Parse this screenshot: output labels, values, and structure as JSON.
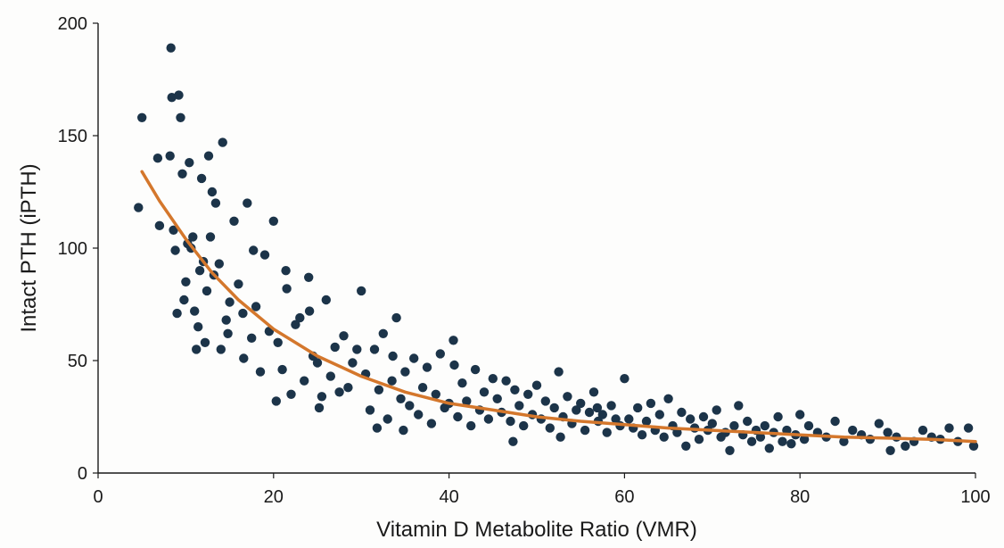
{
  "chart_data": {
    "type": "scatter",
    "title": "",
    "xlabel": "Vitamin D Metabolite Ratio (VMR)",
    "ylabel": "Intact PTH (iPTH)",
    "xlim": [
      0,
      100
    ],
    "ylim": [
      0,
      200
    ],
    "x_ticks": [
      0,
      20,
      40,
      60,
      80,
      100
    ],
    "y_ticks": [
      0,
      50,
      100,
      150,
      200
    ],
    "x_tick_labels": [
      "0",
      "20",
      "40",
      "60",
      "80",
      "100"
    ],
    "y_tick_labels": [
      "0",
      "50",
      "100",
      "150",
      "200"
    ],
    "grid": false,
    "legend": "none",
    "colors": {
      "points": "#1c3449",
      "fit_line": "#d4772c",
      "axis": "#1a1a1a"
    },
    "series": [
      {
        "kind": "points",
        "x": [
          4.6,
          5.0,
          6.8,
          7.0,
          8.2,
          8.3,
          8.4,
          8.6,
          8.8,
          9.0,
          9.2,
          9.4,
          9.6,
          10.0,
          10.4,
          10.8,
          11.2,
          11.0,
          11.4,
          11.8,
          12.0,
          12.2,
          12.6,
          13.0,
          13.4,
          13.8,
          14.2,
          14.0,
          10.2,
          11.6,
          12.4,
          13.2,
          14.6,
          15.0,
          9.8,
          10.6,
          12.8,
          14.8
        ],
        "y": [
          118,
          158,
          140,
          110,
          141,
          189,
          167,
          108,
          99,
          71,
          168,
          158,
          133,
          85,
          138,
          105,
          55,
          72,
          65,
          131,
          94,
          58,
          141,
          125,
          120,
          93,
          147,
          55,
          102,
          90,
          81,
          88,
          68,
          76,
          77,
          100,
          105,
          62
        ]
      },
      {
        "kind": "points",
        "x": [
          15.5,
          16.0,
          16.5,
          17.0,
          17.5,
          18.0,
          18.5,
          19.0,
          19.5,
          20.0,
          20.5,
          21.0,
          21.5,
          22.0,
          22.5,
          23.0,
          23.5,
          24.0,
          24.5,
          25.0,
          25.5,
          26.0,
          26.5,
          27.0,
          27.5,
          28.0,
          28.5,
          29.0,
          29.5,
          30.0,
          20.3,
          21.4,
          24.1,
          25.2,
          16.6,
          17.7
        ],
        "y": [
          112,
          84,
          71,
          120,
          60,
          74,
          45,
          97,
          63,
          112,
          58,
          46,
          82,
          35,
          66,
          69,
          41,
          87,
          52,
          49,
          34,
          77,
          43,
          56,
          36,
          61,
          38,
          49,
          55,
          81,
          32,
          90,
          72,
          29,
          51,
          99
        ]
      },
      {
        "kind": "points",
        "x": [
          30.5,
          31.0,
          31.5,
          32.0,
          32.5,
          33.0,
          33.5,
          34.0,
          34.5,
          35.0,
          35.5,
          36.0,
          36.5,
          37.0,
          37.5,
          38.0,
          38.5,
          39.0,
          39.5,
          40.0,
          40.5,
          41.0,
          41.5,
          42.0,
          42.5,
          43.0,
          43.5,
          44.0,
          44.5,
          45.0,
          31.8,
          33.6,
          34.8,
          40.6
        ],
        "y": [
          44,
          28,
          55,
          37,
          62,
          24,
          41,
          69,
          33,
          45,
          30,
          51,
          26,
          38,
          47,
          22,
          35,
          53,
          29,
          31,
          59,
          25,
          40,
          32,
          21,
          46,
          28,
          36,
          24,
          42,
          20,
          52,
          19,
          48
        ]
      },
      {
        "kind": "points",
        "x": [
          45.5,
          46.0,
          46.5,
          47.0,
          47.5,
          48.0,
          48.5,
          49.0,
          49.5,
          50.0,
          50.5,
          51.0,
          51.5,
          52.0,
          52.5,
          53.0,
          53.5,
          54.0,
          54.5,
          55.0,
          55.5,
          56.0,
          56.5,
          57.0,
          57.5,
          58.0,
          58.5,
          59.0,
          59.5,
          60.0,
          47.3,
          52.7,
          56.9
        ],
        "y": [
          33,
          27,
          41,
          23,
          37,
          30,
          21,
          35,
          26,
          39,
          24,
          32,
          20,
          29,
          45,
          25,
          34,
          22,
          28,
          31,
          19,
          27,
          36,
          23,
          26,
          18,
          30,
          24,
          21,
          42,
          14,
          16,
          29
        ]
      },
      {
        "kind": "points",
        "x": [
          60.5,
          61.0,
          61.5,
          62.0,
          62.5,
          63.0,
          63.5,
          64.0,
          64.5,
          65.0,
          65.5,
          66.0,
          66.5,
          67.0,
          67.5,
          68.0,
          68.5,
          69.0,
          69.5,
          70.0,
          70.5,
          71.0,
          71.5,
          72.0,
          72.5,
          73.0,
          73.5,
          74.0,
          74.5,
          75.0
        ],
        "y": [
          24,
          20,
          29,
          17,
          23,
          31,
          19,
          26,
          16,
          33,
          21,
          18,
          27,
          12,
          24,
          20,
          15,
          25,
          19,
          22,
          28,
          16,
          18,
          10,
          21,
          30,
          17,
          23,
          14,
          19
        ]
      },
      {
        "kind": "points",
        "x": [
          75.5,
          76.0,
          76.5,
          77.0,
          77.5,
          78.0,
          78.5,
          79.0,
          79.5,
          80.0,
          80.5,
          81.0,
          82.0,
          83.0,
          84.0,
          85.0,
          86.0,
          87.0,
          88.0,
          89.0,
          90.0,
          90.3,
          91.0,
          92.0,
          93.0,
          94.0,
          95.0,
          96.0,
          97.0,
          98.0,
          99.2,
          99.8
        ],
        "y": [
          16,
          21,
          11,
          18,
          25,
          14,
          19,
          13,
          17,
          26,
          15,
          21,
          18,
          16,
          23,
          14,
          19,
          17,
          15,
          22,
          18,
          10,
          16,
          12,
          14,
          19,
          16,
          15,
          20,
          14,
          20,
          12
        ]
      },
      {
        "kind": "fit-line",
        "x": [
          5,
          7,
          10,
          13,
          16,
          20,
          25,
          30,
          35,
          40,
          45,
          50,
          55,
          60,
          65,
          70,
          75,
          80,
          85,
          90,
          95,
          100
        ],
        "y": [
          134,
          121,
          104,
          89,
          77,
          64,
          52,
          43,
          36,
          31,
          28,
          25,
          23,
          21.5,
          20,
          19,
          18,
          17,
          16,
          15.5,
          15,
          14
        ]
      }
    ]
  }
}
